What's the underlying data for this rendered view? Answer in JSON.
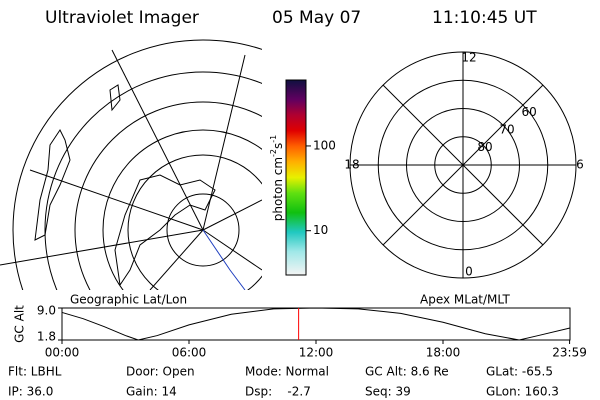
{
  "title": {
    "instrument": "Ultraviolet Imager",
    "date": "05 May 07",
    "time": "11:10:45 UT"
  },
  "colorbar": {
    "label": [
      "photon cm",
      "-2",
      "s",
      "-1"
    ],
    "log": true,
    "ylim": [
      3,
      600
    ],
    "yticks": [
      10,
      100
    ]
  },
  "polar": {
    "rings": [
      50,
      60,
      70,
      80
    ],
    "mlt": [
      12,
      6,
      18,
      0
    ]
  },
  "panel_labels": [
    "Geographic Lat/Lon",
    "Apex MLat/MLT"
  ],
  "chart_data": {
    "type": "line",
    "ylabel": "GC Alt",
    "x": [
      0,
      1,
      2,
      3,
      3.6,
      4.5,
      6,
      8,
      10,
      12,
      14,
      16,
      18,
      20,
      21.6,
      22.5,
      24
    ],
    "series": [
      {
        "name": "GC Alt",
        "color": "#000000",
        "values": [
          8.0,
          6.6,
          4.8,
          2.8,
          1.8,
          2.8,
          5.2,
          7.6,
          8.8,
          9.0,
          8.8,
          7.8,
          5.8,
          3.2,
          1.8,
          2.8,
          4.5
        ]
      }
    ],
    "xlim": [
      0,
      24
    ],
    "xticks": [
      {
        "value": 0,
        "label": "00:00"
      },
      {
        "value": 6,
        "label": "06:00"
      },
      {
        "value": 12,
        "label": "12:00"
      },
      {
        "value": 18,
        "label": "18:00"
      },
      {
        "value": 23.98,
        "label": "23:59"
      }
    ],
    "ylim": [
      1.8,
      9.0
    ],
    "yticks": [
      {
        "value": 1.8,
        "label": "1.8"
      },
      {
        "value": 9.0,
        "label": "9.0"
      }
    ],
    "marker_x": 11.179,
    "marker_color": "#ff0000"
  },
  "footer": {
    "rows": [
      [
        "Flt: LBHL",
        "Door: Open",
        "Mode: Normal",
        "GC Alt: 8.6 Re",
        "GLat: -65.5"
      ],
      [
        "IP: 36.0",
        "Gain: 14",
        "Dsp:    -2.7",
        "Seq: 39",
        "GLon: 160.3"
      ]
    ]
  }
}
